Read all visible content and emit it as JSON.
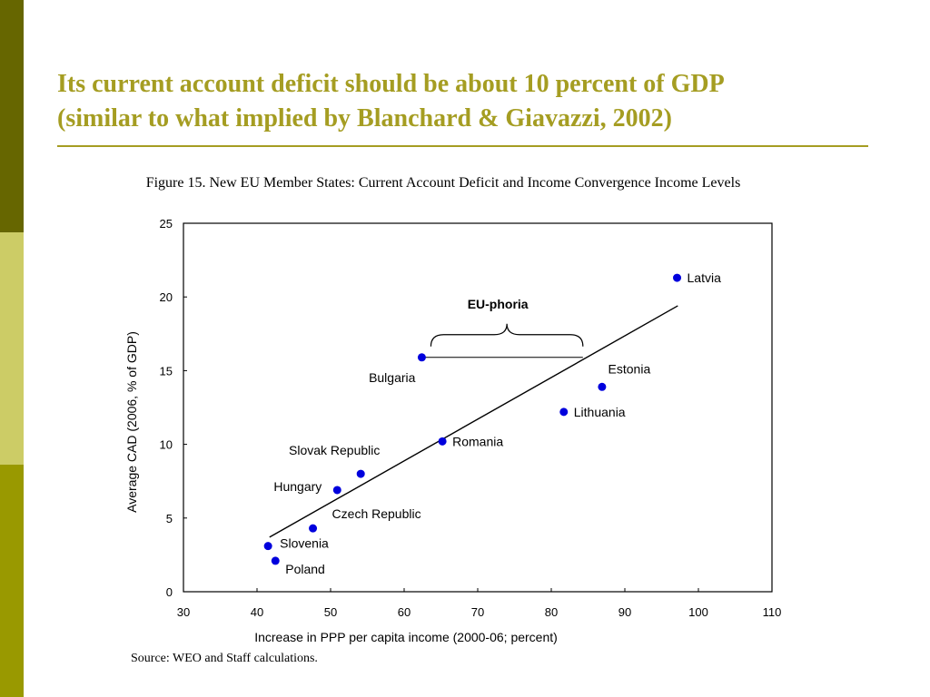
{
  "slide": {
    "title_line1": "Its current account deficit should be about 10 percent of GDP",
    "title_line2": "(similar to what implied by Blanchard & Giavazzi, 2002)",
    "accent_color": "#a59d22",
    "side_bar_colors": [
      "#666600",
      "#cccc66",
      "#999900"
    ]
  },
  "figure": {
    "caption": "Figure 15. New EU Member States: Current Account Deficit and Income Convergence Income Levels",
    "source": "Source: WEO and Staff calculations."
  },
  "chart_data": {
    "type": "scatter",
    "xlabel": "Increase in PPP per capita income (2000-06; percent)",
    "ylabel": "Average CAD (2006, % of GDP)",
    "xlim": [
      30,
      110
    ],
    "ylim": [
      0,
      25
    ],
    "x_ticks": [
      "30",
      "40",
      "50",
      "60",
      "70",
      "80",
      "90",
      "100",
      "110"
    ],
    "y_ticks": [
      "0",
      "5",
      "10",
      "15",
      "20",
      "25"
    ],
    "grid": false,
    "marker_color": "#0000dd",
    "points": [
      {
        "label": "Latvia",
        "x": 97.1,
        "y": 21.3
      },
      {
        "label": "Estonia",
        "x": 86.9,
        "y": 13.9
      },
      {
        "label": "Lithuania",
        "x": 81.7,
        "y": 12.2
      },
      {
        "label": "Bulgaria",
        "x": 62.4,
        "y": 15.9
      },
      {
        "label": "Romania",
        "x": 65.2,
        "y": 10.2
      },
      {
        "label": "Slovak Republic",
        "x": 54.1,
        "y": 8.0
      },
      {
        "label": "Hungary",
        "x": 50.9,
        "y": 6.9
      },
      {
        "label": "Czech Republic",
        "x": 47.6,
        "y": 4.3
      },
      {
        "label": "Slovenia",
        "x": 41.5,
        "y": 3.1
      },
      {
        "label": "Poland",
        "x": 42.5,
        "y": 2.1
      }
    ],
    "trend_line": {
      "x": [
        41.7,
        97.2
      ],
      "y": [
        3.7,
        19.4
      ]
    },
    "annotation": {
      "text": "EU-phoria",
      "x_from": 62.4,
      "x_to": 84.3,
      "y": 15.9
    }
  }
}
